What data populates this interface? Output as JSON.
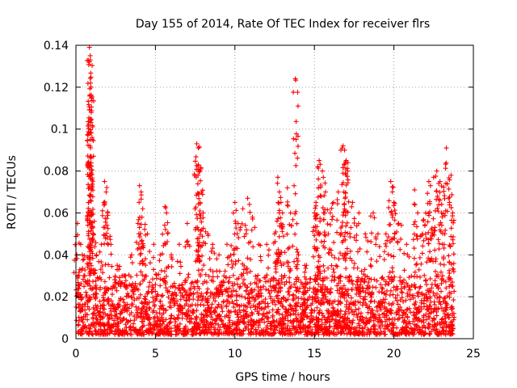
{
  "chart_data": {
    "type": "scatter",
    "title": "Day 155 of 2014, Rate Of TEC Index for receiver flrs",
    "xlabel": "GPS time / hours",
    "ylabel": "ROTI / TECUs",
    "xlim": [
      0,
      25
    ],
    "ylim": [
      0,
      0.14
    ],
    "x_ticks": [
      0,
      5,
      10,
      15,
      20,
      25
    ],
    "y_ticks": [
      0,
      0.02,
      0.04,
      0.06,
      0.08,
      0.1,
      0.12,
      0.14
    ],
    "x_tick_labels": [
      "0",
      "5",
      "10",
      "15",
      "20",
      "25"
    ],
    "y_tick_labels": [
      "0",
      "0.02",
      "0.04",
      "0.06",
      "0.08",
      "0.1",
      "0.12",
      "0.14"
    ],
    "grid": true,
    "marker": "+",
    "marker_color": "#ff0000",
    "series": [
      {
        "name": "ROTI",
        "points": [
          [
            0.05,
            0.04
          ],
          [
            0.1,
            0.055
          ],
          [
            0.3,
            0.045
          ],
          [
            0.4,
            0.04
          ],
          [
            0.5,
            0.03
          ],
          [
            0.8,
            0.065
          ],
          [
            0.85,
            0.139
          ],
          [
            0.9,
            0.135
          ],
          [
            0.9,
            0.133
          ],
          [
            0.92,
            0.122
          ],
          [
            0.95,
            0.12
          ],
          [
            0.9,
            0.095
          ],
          [
            0.95,
            0.087
          ],
          [
            1.0,
            0.06
          ],
          [
            1.1,
            0.05
          ],
          [
            1.3,
            0.04
          ],
          [
            1.6,
            0.045
          ],
          [
            1.8,
            0.075
          ],
          [
            1.9,
            0.07
          ],
          [
            2.0,
            0.06
          ],
          [
            2.2,
            0.045
          ],
          [
            2.6,
            0.035
          ],
          [
            3.0,
            0.03
          ],
          [
            3.5,
            0.04
          ],
          [
            3.9,
            0.055
          ],
          [
            4.0,
            0.073
          ],
          [
            4.1,
            0.07
          ],
          [
            4.2,
            0.062
          ],
          [
            4.5,
            0.05
          ],
          [
            4.9,
            0.045
          ],
          [
            5.3,
            0.04
          ],
          [
            5.6,
            0.063
          ],
          [
            5.7,
            0.06
          ],
          [
            6.0,
            0.04
          ],
          [
            6.5,
            0.045
          ],
          [
            7.0,
            0.055
          ],
          [
            7.6,
            0.093
          ],
          [
            7.7,
            0.091
          ],
          [
            7.7,
            0.083
          ],
          [
            7.8,
            0.08
          ],
          [
            7.9,
            0.07
          ],
          [
            8.0,
            0.06
          ],
          [
            8.3,
            0.05
          ],
          [
            8.6,
            0.045
          ],
          [
            9.0,
            0.04
          ],
          [
            9.5,
            0.045
          ],
          [
            9.9,
            0.06
          ],
          [
            10.0,
            0.065
          ],
          [
            10.2,
            0.055
          ],
          [
            10.5,
            0.062
          ],
          [
            10.8,
            0.067
          ],
          [
            11.1,
            0.058
          ],
          [
            11.5,
            0.045
          ],
          [
            12.0,
            0.045
          ],
          [
            12.5,
            0.05
          ],
          [
            12.7,
            0.077
          ],
          [
            12.8,
            0.07
          ],
          [
            12.9,
            0.065
          ],
          [
            13.0,
            0.06
          ],
          [
            13.3,
            0.072
          ],
          [
            13.5,
            0.06
          ],
          [
            13.8,
            0.124
          ],
          [
            14.0,
            0.04
          ],
          [
            14.5,
            0.035
          ],
          [
            15.0,
            0.06
          ],
          [
            15.1,
            0.065
          ],
          [
            15.2,
            0.082
          ],
          [
            15.3,
            0.085
          ],
          [
            15.5,
            0.08
          ],
          [
            15.7,
            0.07
          ],
          [
            16.0,
            0.06
          ],
          [
            16.2,
            0.065
          ],
          [
            16.5,
            0.07
          ],
          [
            16.8,
            0.092
          ],
          [
            16.9,
            0.09
          ],
          [
            17.0,
            0.085
          ],
          [
            17.1,
            0.08
          ],
          [
            17.4,
            0.065
          ],
          [
            17.8,
            0.06
          ],
          [
            18.2,
            0.05
          ],
          [
            18.7,
            0.06
          ],
          [
            19.0,
            0.05
          ],
          [
            19.5,
            0.05
          ],
          [
            19.8,
            0.075
          ],
          [
            19.9,
            0.07
          ],
          [
            20.0,
            0.065
          ],
          [
            20.3,
            0.055
          ],
          [
            20.8,
            0.045
          ],
          [
            21.3,
            0.071
          ],
          [
            21.5,
            0.06
          ],
          [
            21.8,
            0.05
          ],
          [
            22.0,
            0.06
          ],
          [
            22.2,
            0.075
          ],
          [
            22.3,
            0.073
          ],
          [
            22.5,
            0.077
          ],
          [
            22.7,
            0.08
          ],
          [
            22.9,
            0.075
          ],
          [
            23.0,
            0.06
          ],
          [
            23.2,
            0.05
          ],
          [
            23.3,
            0.091
          ],
          [
            23.5,
            0.065
          ],
          [
            23.6,
            0.078
          ],
          [
            23.7,
            0.06
          ]
        ],
        "dense_band": {
          "x_range": [
            0,
            23.8
          ],
          "y_range": [
            0.002,
            0.03
          ],
          "note": "continuous dense scatter of ROTI values between roughly 0.002 and 0.03 TECU/min across all hours"
        }
      }
    ]
  }
}
